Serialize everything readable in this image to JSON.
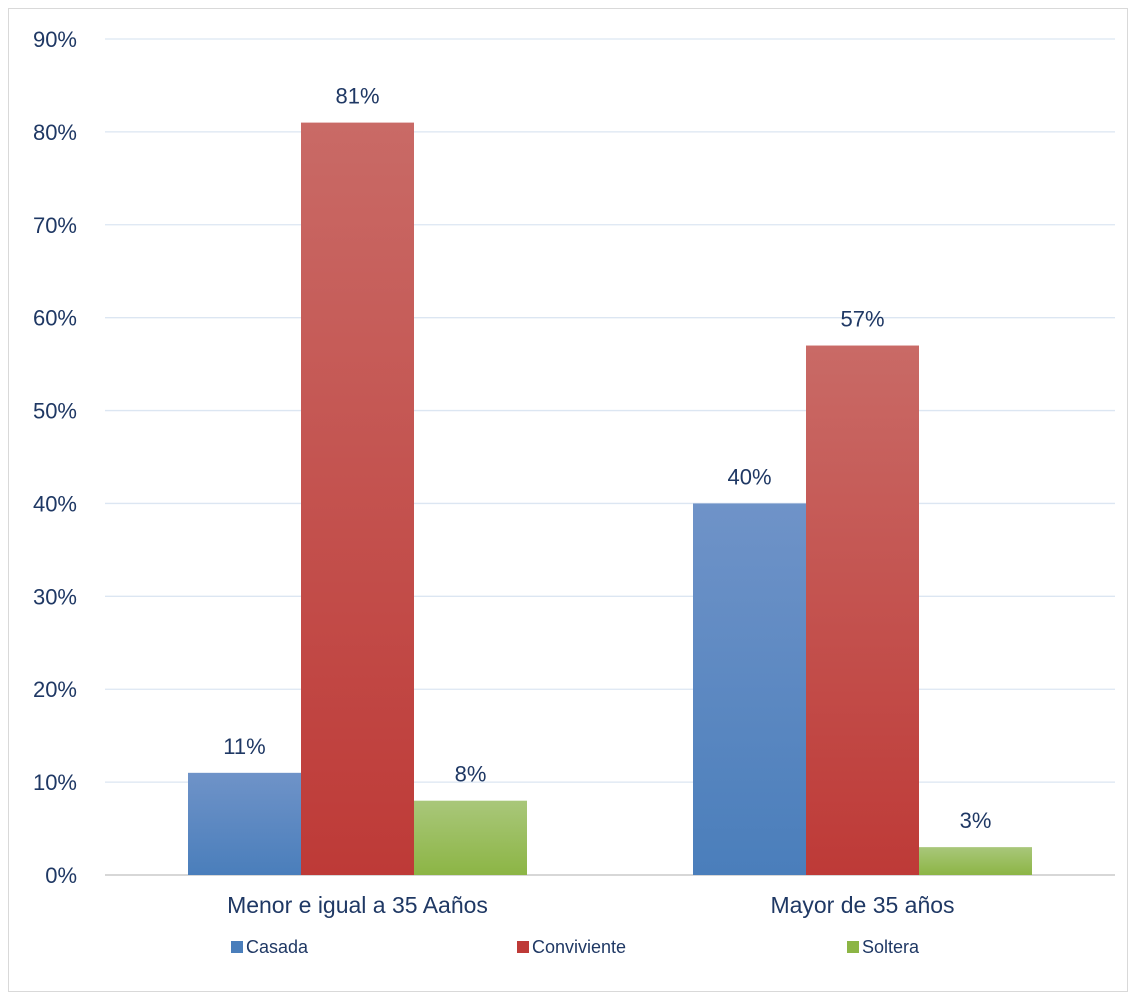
{
  "chart_data": {
    "type": "bar",
    "title": "",
    "xlabel": "",
    "ylabel": "",
    "categories": [
      "Menor e igual a 35 Aaños",
      "Mayor de 35 años"
    ],
    "series": [
      {
        "name": "Casada",
        "values": [
          11,
          40
        ],
        "color": "#4a7ebb",
        "color_light": "#6f93c8"
      },
      {
        "name": "Conviviente",
        "values": [
          81,
          57
        ],
        "color": "#be3a37",
        "color_light": "#c96a66"
      },
      {
        "name": "Soltera",
        "values": [
          8,
          3
        ],
        "color": "#8cb545",
        "color_light": "#a9c77a"
      }
    ],
    "ylim": [
      0,
      90
    ],
    "yticks": [
      0,
      10,
      20,
      30,
      40,
      50,
      60,
      70,
      80,
      90
    ],
    "tick_labels": [
      "0%",
      "10%",
      "20%",
      "30%",
      "40%",
      "50%",
      "60%",
      "70%",
      "80%",
      "90%"
    ],
    "data_labels": [
      [
        "11%",
        "40%"
      ],
      [
        "81%",
        "57%"
      ],
      [
        "8%",
        "3%"
      ]
    ],
    "grid": true,
    "legend_position": "bottom"
  }
}
